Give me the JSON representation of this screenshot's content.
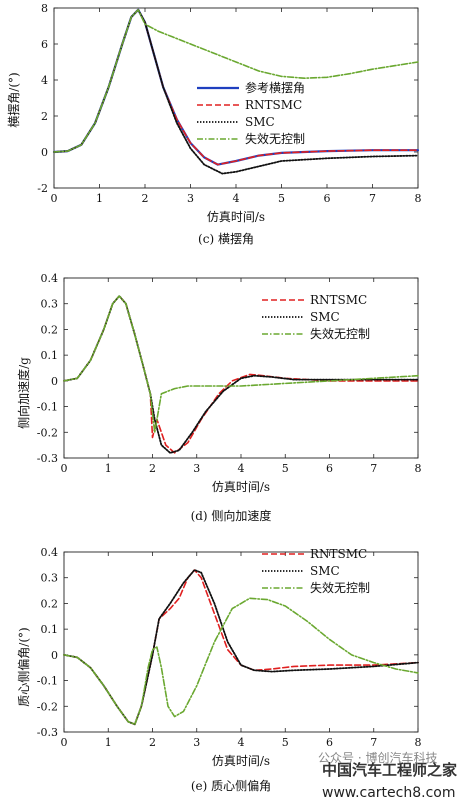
{
  "colors": {
    "reference": "#1f3fbf",
    "rntsmc": "#e02020",
    "smc": "#111111",
    "uncontrolled": "#6aa830"
  },
  "chart_data": [
    {
      "type": "line",
      "caption": "(c) 横摆角",
      "xlabel": "仿真时间/s",
      "ylabel": "横摆角/(°)",
      "xlim": [
        0,
        8
      ],
      "ylim": [
        -2,
        8
      ],
      "xticks": [
        "0",
        "1",
        "2",
        "3",
        "4",
        "5",
        "6",
        "7",
        "8"
      ],
      "yticks": [
        "-2",
        "0",
        "2",
        "4",
        "6",
        "8"
      ],
      "legend_position": "center-right",
      "legend": [
        "参考横摆角",
        "RNTSMC",
        "SMC",
        "失效无控制"
      ],
      "series": [
        {
          "name": "参考横摆角",
          "color_key": "reference",
          "x": [
            0,
            0.3,
            0.6,
            0.9,
            1.2,
            1.5,
            1.7,
            1.85,
            2.0,
            2.2,
            2.4,
            2.7,
            3.0,
            3.3,
            3.6,
            4.0,
            4.5,
            5.0,
            6.0,
            7.0,
            8.0
          ],
          "y": [
            0,
            0.05,
            0.4,
            1.6,
            3.6,
            6.0,
            7.5,
            7.9,
            7.2,
            5.4,
            3.6,
            1.8,
            0.5,
            -0.3,
            -0.7,
            -0.5,
            -0.2,
            -0.05,
            0.05,
            0.1,
            0.1
          ]
        },
        {
          "name": "RNTSMC",
          "color_key": "rntsmc",
          "x": [
            0,
            0.3,
            0.6,
            0.9,
            1.2,
            1.5,
            1.7,
            1.85,
            2.0,
            2.2,
            2.4,
            2.7,
            3.0,
            3.3,
            3.6,
            4.0,
            4.5,
            5.0,
            6.0,
            7.0,
            8.0
          ],
          "y": [
            0,
            0.05,
            0.4,
            1.6,
            3.6,
            6.0,
            7.5,
            7.9,
            7.2,
            5.4,
            3.6,
            1.8,
            0.5,
            -0.3,
            -0.7,
            -0.5,
            -0.2,
            -0.05,
            0.05,
            0.1,
            0.1
          ]
        },
        {
          "name": "SMC",
          "color_key": "smc",
          "x": [
            0,
            0.3,
            0.6,
            0.9,
            1.2,
            1.5,
            1.7,
            1.85,
            2.0,
            2.2,
            2.4,
            2.7,
            3.0,
            3.3,
            3.7,
            4.0,
            4.5,
            5.0,
            6.0,
            7.0,
            8.0
          ],
          "y": [
            0,
            0.05,
            0.4,
            1.6,
            3.6,
            6.0,
            7.5,
            7.9,
            7.2,
            5.4,
            3.6,
            1.6,
            0.2,
            -0.7,
            -1.2,
            -1.1,
            -0.8,
            -0.5,
            -0.35,
            -0.25,
            -0.2
          ]
        },
        {
          "name": "失效无控制",
          "color_key": "uncontrolled",
          "x": [
            0,
            0.3,
            0.6,
            0.9,
            1.2,
            1.5,
            1.7,
            1.85,
            2.0,
            2.3,
            2.6,
            3.0,
            3.5,
            4.0,
            4.5,
            5.0,
            5.5,
            6.0,
            6.5,
            7.0,
            7.5,
            8.0
          ],
          "y": [
            0,
            0.05,
            0.4,
            1.6,
            3.6,
            6.0,
            7.5,
            7.9,
            7.1,
            6.7,
            6.4,
            6.0,
            5.5,
            5.0,
            4.5,
            4.2,
            4.1,
            4.15,
            4.35,
            4.6,
            4.8,
            5.0
          ]
        }
      ]
    },
    {
      "type": "line",
      "caption": "(d) 侧向加速度",
      "xlabel": "仿真时间/s",
      "ylabel": "侧向加速度/g",
      "xlim": [
        0,
        8
      ],
      "ylim": [
        -0.3,
        0.4
      ],
      "xticks": [
        "0",
        "1",
        "2",
        "3",
        "4",
        "5",
        "6",
        "7",
        "8"
      ],
      "yticks": [
        "-0.3",
        "-0.2",
        "-0.1",
        "0",
        "0.1",
        "0.2",
        "0.3",
        "0.4"
      ],
      "legend_position": "top-right",
      "legend": [
        "RNTSMC",
        "SMC",
        "失效无控制"
      ],
      "series": [
        {
          "name": "RNTSMC",
          "color_key": "rntsmc",
          "x": [
            0,
            0.3,
            0.6,
            0.9,
            1.1,
            1.25,
            1.4,
            1.6,
            1.8,
            1.95,
            2.0,
            2.1,
            2.3,
            2.5,
            2.8,
            3.1,
            3.5,
            3.8,
            4.2,
            4.5,
            5.0,
            6.0,
            7.0,
            8.0
          ],
          "y": [
            0,
            0.01,
            0.08,
            0.2,
            0.3,
            0.33,
            0.3,
            0.18,
            0.05,
            -0.05,
            -0.22,
            -0.15,
            -0.25,
            -0.28,
            -0.24,
            -0.15,
            -0.05,
            0.0,
            0.025,
            0.02,
            0.01,
            0.0,
            0.0,
            0.0
          ]
        },
        {
          "name": "SMC",
          "color_key": "smc",
          "x": [
            0,
            0.3,
            0.6,
            0.9,
            1.1,
            1.25,
            1.4,
            1.6,
            1.8,
            1.95,
            2.05,
            2.2,
            2.4,
            2.6,
            2.9,
            3.2,
            3.6,
            4.0,
            4.3,
            4.7,
            5.2,
            6.0,
            7.0,
            8.0
          ],
          "y": [
            0,
            0.01,
            0.08,
            0.2,
            0.3,
            0.33,
            0.3,
            0.18,
            0.05,
            -0.05,
            -0.15,
            -0.25,
            -0.28,
            -0.27,
            -0.2,
            -0.12,
            -0.04,
            0.01,
            0.02,
            0.015,
            0.005,
            0.005,
            0.005,
            0.005
          ]
        },
        {
          "name": "失效无控制",
          "color_key": "uncontrolled",
          "x": [
            0,
            0.3,
            0.6,
            0.9,
            1.1,
            1.25,
            1.4,
            1.6,
            1.8,
            1.95,
            2.05,
            2.2,
            2.5,
            2.8,
            3.2,
            4.0,
            5.0,
            6.0,
            7.0,
            8.0
          ],
          "y": [
            0,
            0.01,
            0.08,
            0.2,
            0.3,
            0.33,
            0.3,
            0.18,
            0.05,
            -0.05,
            -0.2,
            -0.05,
            -0.03,
            -0.02,
            -0.02,
            -0.02,
            -0.01,
            0.0,
            0.01,
            0.02
          ]
        }
      ]
    },
    {
      "type": "line",
      "caption": "(e) 质心侧偏角",
      "xlabel": "仿真时间/s",
      "ylabel": "质心侧偏角/(°)",
      "xlim": [
        0,
        8
      ],
      "ylim": [
        -0.3,
        0.4
      ],
      "xticks": [
        "0",
        "1",
        "2",
        "3",
        "4",
        "5",
        "6",
        "7",
        "8"
      ],
      "yticks": [
        "-0.3",
        "-0.2",
        "-0.1",
        "0",
        "0.1",
        "0.2",
        "0.3",
        "0.4"
      ],
      "legend_position": "top-right",
      "legend": [
        "RNTSMC",
        "SMC",
        "失效无控制"
      ],
      "series": [
        {
          "name": "RNTSMC",
          "color_key": "rntsmc",
          "x": [
            0,
            0.3,
            0.6,
            0.9,
            1.2,
            1.45,
            1.6,
            1.75,
            1.9,
            2.0,
            2.15,
            2.4,
            2.6,
            2.8,
            2.95,
            3.1,
            3.4,
            3.7,
            4.0,
            4.3,
            4.7,
            5.2,
            6.0,
            7.0,
            8.0
          ],
          "y": [
            0,
            -0.01,
            -0.05,
            -0.12,
            -0.2,
            -0.26,
            -0.27,
            -0.2,
            -0.08,
            0.0,
            0.14,
            0.18,
            0.22,
            0.3,
            0.33,
            0.3,
            0.16,
            0.02,
            -0.04,
            -0.06,
            -0.055,
            -0.045,
            -0.04,
            -0.04,
            -0.03
          ]
        },
        {
          "name": "SMC",
          "color_key": "smc",
          "x": [
            0,
            0.3,
            0.6,
            0.9,
            1.2,
            1.45,
            1.6,
            1.75,
            1.9,
            2.0,
            2.15,
            2.4,
            2.7,
            2.95,
            3.1,
            3.4,
            3.7,
            4.0,
            4.3,
            4.7,
            5.2,
            6.0,
            7.0,
            8.0
          ],
          "y": [
            0,
            -0.01,
            -0.05,
            -0.12,
            -0.2,
            -0.26,
            -0.27,
            -0.2,
            -0.08,
            0.0,
            0.14,
            0.2,
            0.28,
            0.33,
            0.32,
            0.2,
            0.05,
            -0.04,
            -0.06,
            -0.065,
            -0.06,
            -0.055,
            -0.045,
            -0.03
          ]
        },
        {
          "name": "失效无控制",
          "color_key": "uncontrolled",
          "x": [
            0,
            0.3,
            0.6,
            0.9,
            1.2,
            1.45,
            1.6,
            1.75,
            1.9,
            2.0,
            2.1,
            2.2,
            2.35,
            2.5,
            2.7,
            3.0,
            3.4,
            3.8,
            4.2,
            4.6,
            5.0,
            5.5,
            6.0,
            6.5,
            7.0,
            7.5,
            8.0
          ],
          "y": [
            0,
            -0.01,
            -0.05,
            -0.12,
            -0.2,
            -0.26,
            -0.27,
            -0.2,
            -0.05,
            0.02,
            0.03,
            -0.05,
            -0.2,
            -0.24,
            -0.22,
            -0.12,
            0.05,
            0.18,
            0.22,
            0.215,
            0.19,
            0.13,
            0.06,
            0.0,
            -0.03,
            -0.055,
            -0.07
          ]
        }
      ]
    }
  ],
  "watermark": {
    "line1": "中国汽车工程师之家",
    "line2": "公众号 · 博创汽车科技",
    "line3": "www.cartech8.com"
  }
}
